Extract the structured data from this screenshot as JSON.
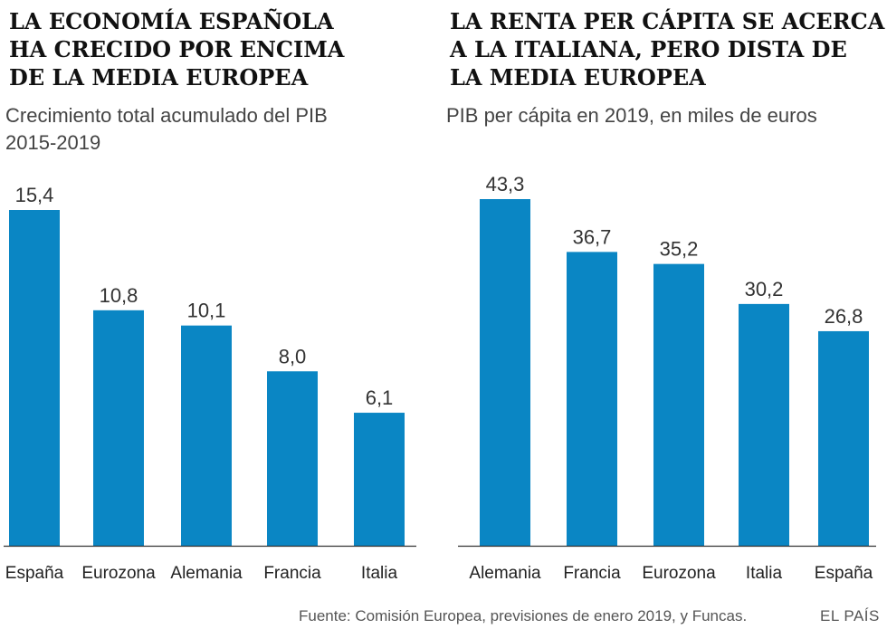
{
  "chart_data": [
    {
      "type": "bar",
      "title": "LA ECONOMÍA ESPAÑOLA\nHA CRECIDO POR ENCIMA\nDE LA MEDIA EUROPEA",
      "subtitle": "Crecimiento total acumulado del PIB\n2015-2019",
      "categories": [
        "España",
        "Eurozona",
        "Alemania",
        "Francia",
        "Italia"
      ],
      "values": [
        15.4,
        10.8,
        10.1,
        8.0,
        6.1
      ],
      "labels": [
        "15,4",
        "10,8",
        "10,1",
        "8,0",
        "6,1"
      ],
      "ylim": [
        0,
        15.4
      ],
      "xlabel": "",
      "ylabel": "",
      "grid": false
    },
    {
      "type": "bar",
      "title": "LA RENTA PER CÁPITA SE ACERCA\nA LA ITALIANA, PERO DISTA DE\nLA MEDIA EUROPEA",
      "subtitle": "PIB per cápita en 2019, en miles de euros",
      "categories": [
        "Alemania",
        "Francia",
        "Eurozona",
        "Italia",
        "España"
      ],
      "values": [
        43.3,
        36.7,
        35.2,
        30.2,
        26.8
      ],
      "labels": [
        "43,3",
        "36,7",
        "35,2",
        "30,2",
        "26,8"
      ],
      "ylim": [
        0,
        43.3
      ],
      "xlabel": "",
      "ylabel": "",
      "grid": false
    }
  ],
  "colors": {
    "bar": "#0a86c4",
    "axis": "#333333"
  },
  "footer": {
    "source": "Fuente: Comisión Europea, previsiones de enero 2019, y Funcas.",
    "brand": "EL PAÍS"
  }
}
